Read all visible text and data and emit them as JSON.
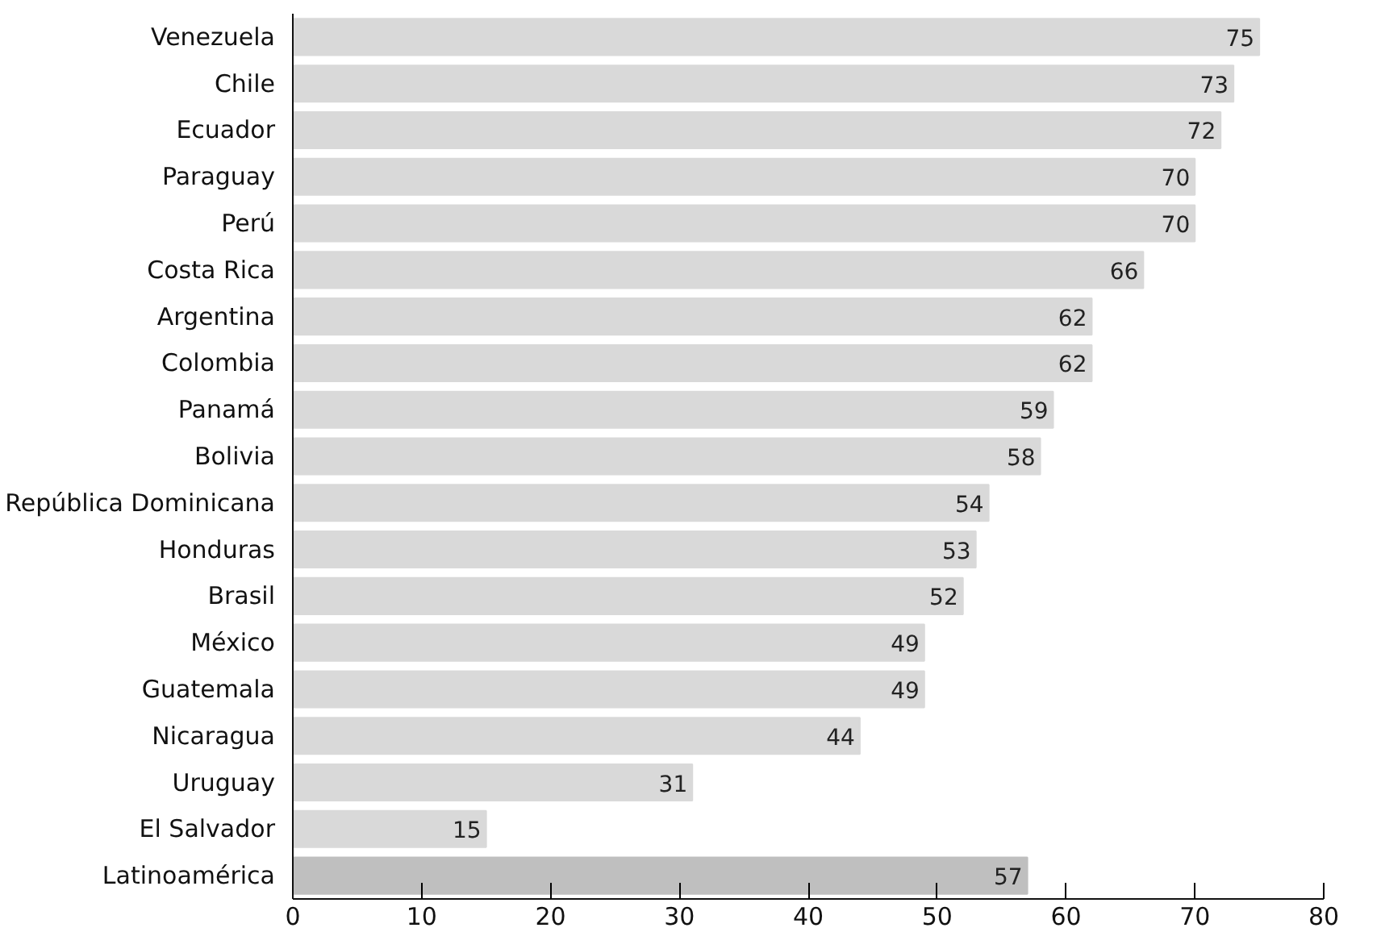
{
  "chart_data": {
    "type": "bar",
    "orientation": "horizontal",
    "categories": [
      "Venezuela",
      "Chile",
      "Ecuador",
      "Paraguay",
      "Perú",
      "Costa Rica",
      "Argentina",
      "Colombia",
      "Panamá",
      "Bolivia",
      "República Dominicana",
      "Honduras",
      "Brasil",
      "México",
      "Guatemala",
      "Nicaragua",
      "Uruguay",
      "El Salvador",
      "Latinoamérica"
    ],
    "values": [
      75,
      73,
      72,
      70,
      70,
      66,
      62,
      62,
      59,
      58,
      54,
      53,
      52,
      49,
      49,
      44,
      31,
      15,
      57
    ],
    "colors": [
      "#d9d9d9",
      "#d9d9d9",
      "#d9d9d9",
      "#d9d9d9",
      "#d9d9d9",
      "#d9d9d9",
      "#d9d9d9",
      "#d9d9d9",
      "#d9d9d9",
      "#d9d9d9",
      "#d9d9d9",
      "#d9d9d9",
      "#d9d9d9",
      "#d9d9d9",
      "#d9d9d9",
      "#d9d9d9",
      "#d9d9d9",
      "#d9d9d9",
      "#bfbfbf"
    ],
    "xlim": [
      0,
      80
    ],
    "xticks": [
      0,
      10,
      20,
      30,
      40,
      50,
      60,
      70,
      80
    ],
    "data_labels": true,
    "grid": false
  }
}
